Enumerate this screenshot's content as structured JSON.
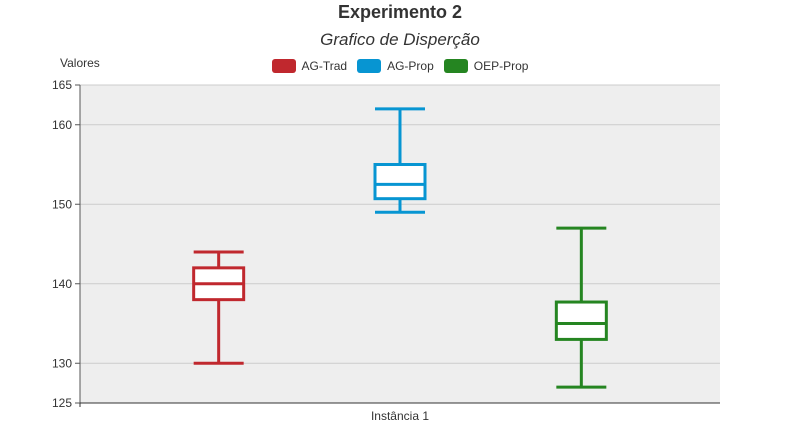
{
  "chart_data": {
    "type": "boxplot",
    "title": "Experimento 2",
    "subtitle": "Grafico de Disperção",
    "ylabel": "Valores",
    "xlabel": "",
    "categories": [
      "Instância 1"
    ],
    "ylim": [
      125,
      165
    ],
    "yticks": [
      125,
      130,
      140,
      150,
      160,
      165
    ],
    "grid": true,
    "legend_position": "top-center",
    "series": [
      {
        "name": "AG-Trad",
        "color": "#c0282e",
        "min": 130,
        "q1": 138,
        "median": 140,
        "q3": 142,
        "max": 144
      },
      {
        "name": "AG-Prop",
        "color": "#0795d2",
        "min": 149,
        "q1": 150.7,
        "median": 152.5,
        "q3": 155,
        "max": 162
      },
      {
        "name": "OEP-Prop",
        "color": "#258521",
        "min": 127,
        "q1": 133,
        "median": 135,
        "q3": 137.7,
        "max": 147
      }
    ]
  }
}
